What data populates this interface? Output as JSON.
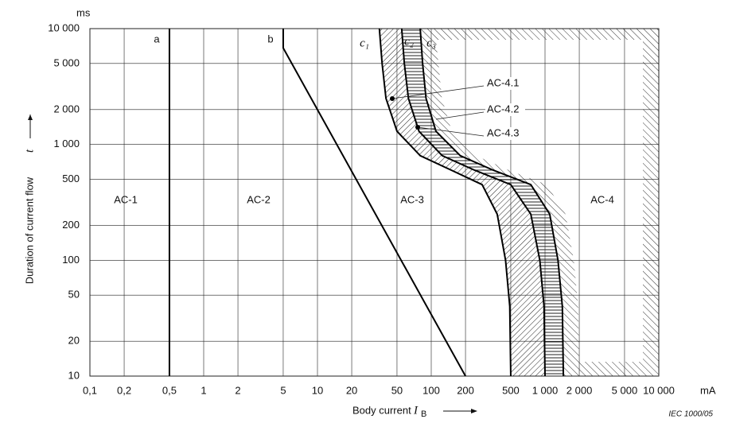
{
  "chart_data": {
    "type": "line",
    "y_label": "Duration of current flow",
    "y_symbol": "t",
    "y_unit": "ms",
    "x_label": "Body current",
    "x_symbol": "I",
    "x_symbol_sub": "B",
    "x_unit": "mA",
    "source": "IEC  1000/05",
    "xscale": "log",
    "yscale": "log",
    "grid": true,
    "xlim": [
      0.1,
      10000
    ],
    "ylim": [
      10,
      10000
    ],
    "xticks": [
      {
        "value": 0.1,
        "label": "0,1"
      },
      {
        "value": 0.2,
        "label": "0,2"
      },
      {
        "value": 0.5,
        "label": "0,5"
      },
      1,
      2,
      5,
      10,
      20,
      50,
      100,
      200,
      500,
      {
        "value": 1000,
        "label": "1 000"
      },
      {
        "value": 2000,
        "label": "2 000"
      },
      {
        "value": 5000,
        "label": "5 000"
      },
      {
        "value": 10000,
        "label": "10 000"
      }
    ],
    "yticks": [
      10,
      20,
      50,
      100,
      200,
      500,
      {
        "value": 1000,
        "label": "1 000"
      },
      {
        "value": 2000,
        "label": "2 000"
      },
      {
        "value": 5000,
        "label": "5 000"
      },
      {
        "value": 10000,
        "label": "10 000"
      }
    ],
    "series": [
      {
        "name": "a",
        "color": "#000000",
        "x": [
          0.5,
          0.5
        ],
        "y": [
          10,
          10000
        ]
      },
      {
        "name": "b",
        "color": "#000000",
        "x": [
          5,
          5,
          200
        ],
        "y": [
          10000,
          6800,
          10
        ]
      },
      {
        "name": "c₁",
        "color": "#000000",
        "x": [
          35,
          37,
          40,
          50,
          80,
          150,
          280,
          380,
          450,
          490,
          500
        ],
        "y": [
          10000,
          5000,
          2500,
          1300,
          800,
          600,
          450,
          250,
          100,
          40,
          10
        ]
      },
      {
        "name": "c₂",
        "color": "#000000",
        "x": [
          55,
          58,
          63,
          78,
          125,
          240,
          500,
          750,
          900,
          980,
          1000
        ],
        "y": [
          10000,
          5000,
          2500,
          1300,
          800,
          600,
          450,
          250,
          100,
          40,
          10
        ]
      },
      {
        "name": "c₃",
        "color": "#000000",
        "x": [
          80,
          84,
          90,
          110,
          180,
          350,
          750,
          1100,
          1300,
          1420,
          1450
        ],
        "y": [
          10000,
          5000,
          2500,
          1300,
          800,
          600,
          450,
          250,
          100,
          40,
          10
        ]
      }
    ],
    "zones": [
      "AC-1",
      "AC-2",
      "AC-3",
      "AC-4"
    ],
    "annotations": [
      "AC-4.1",
      "AC-4.2",
      "AC-4.3"
    ]
  }
}
